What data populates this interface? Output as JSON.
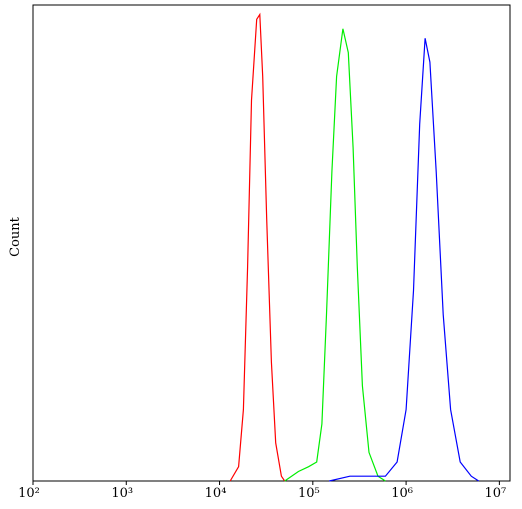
{
  "chart_data": {
    "type": "line",
    "ylabel": "Count",
    "xscale": "log",
    "xlim": [
      100,
      13000000
    ],
    "xticks": [
      {
        "value": 100,
        "label": "10²"
      },
      {
        "value": 1000,
        "label": "10³"
      },
      {
        "value": 10000,
        "label": "10⁴"
      },
      {
        "value": 100000,
        "label": "10⁵"
      },
      {
        "value": 1000000,
        "label": "10⁶"
      },
      {
        "value": 10000000,
        "label": "10⁷"
      }
    ],
    "ylim": [
      0,
      100
    ],
    "series": [
      {
        "color": "#ff0000",
        "x": [
          13000,
          16000,
          18000,
          20000,
          22000,
          25000,
          27000,
          29000,
          32000,
          36000,
          40000,
          46000,
          50000
        ],
        "values": [
          0,
          3,
          15,
          45,
          80,
          97,
          98,
          85,
          55,
          25,
          8,
          1,
          0
        ]
      },
      {
        "color": "#00ee00",
        "x": [
          50000,
          70000,
          90000,
          110000,
          125000,
          140000,
          160000,
          180000,
          210000,
          240000,
          270000,
          300000,
          340000,
          400000,
          500000,
          600000
        ],
        "values": [
          0,
          2,
          3,
          4,
          12,
          35,
          65,
          85,
          95,
          90,
          70,
          45,
          20,
          6,
          1,
          0
        ]
      },
      {
        "color": "#0000ff",
        "x": [
          150000,
          250000,
          400000,
          600000,
          800000,
          1000000,
          1200000,
          1400000,
          1600000,
          1800000,
          2100000,
          2500000,
          3000000,
          3800000,
          5000000,
          6000000
        ],
        "values": [
          0,
          1,
          1,
          1,
          4,
          15,
          40,
          75,
          93,
          88,
          65,
          35,
          15,
          4,
          1,
          0
        ]
      }
    ]
  }
}
